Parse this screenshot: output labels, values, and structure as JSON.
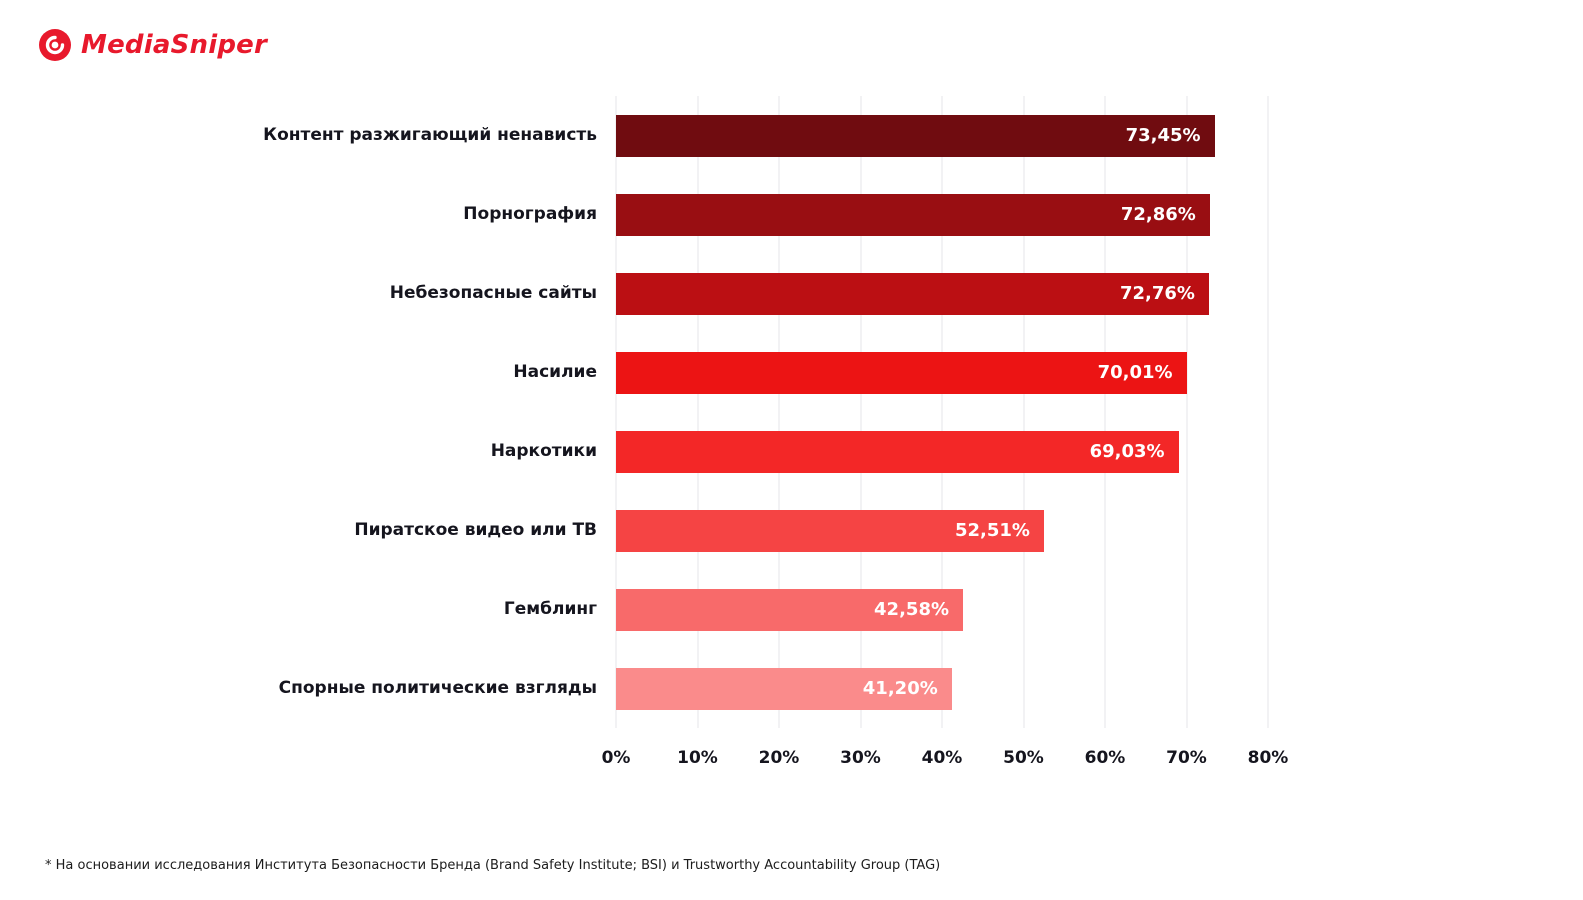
{
  "logo": {
    "text": "MediaSniper",
    "color": "#e8192c"
  },
  "footnote": "* На основании исследования Института Безопасности Бренда (Brand Safety Institute; BSI) и Trustworthy Accountability Group (TAG)",
  "chart_data": {
    "type": "bar",
    "orientation": "horizontal",
    "title": "",
    "xlabel": "",
    "ylabel": "",
    "xlim": [
      0,
      80
    ],
    "grid": true,
    "legend": false,
    "categories": [
      "Контент разжигающий ненависть",
      "Порнография",
      "Небезопасные сайты",
      "Насилие",
      "Наркотики",
      "Пиратское видео или ТВ",
      "Гемблинг",
      "Спорные политические взгляды"
    ],
    "values": [
      73.45,
      72.86,
      72.76,
      70.01,
      69.03,
      52.51,
      42.58,
      41.2
    ],
    "value_labels": [
      "73,45%",
      "72,86%",
      "72,76%",
      "70,01%",
      "69,03%",
      "52,51%",
      "42,58%",
      "41,20%"
    ],
    "colors": [
      "#700c10",
      "#990e12",
      "#bb0f13",
      "#ec1414",
      "#f32727",
      "#f54444",
      "#f86a6a",
      "#fa8b8b"
    ],
    "x_ticks": [
      {
        "value": 0,
        "label": "0%"
      },
      {
        "value": 10,
        "label": "10%"
      },
      {
        "value": 20,
        "label": "20%"
      },
      {
        "value": 30,
        "label": "30%"
      },
      {
        "value": 40,
        "label": "40%"
      },
      {
        "value": 50,
        "label": "50%"
      },
      {
        "value": 60,
        "label": "60%"
      },
      {
        "value": 70,
        "label": "70%"
      },
      {
        "value": 80,
        "label": "80%"
      }
    ]
  }
}
